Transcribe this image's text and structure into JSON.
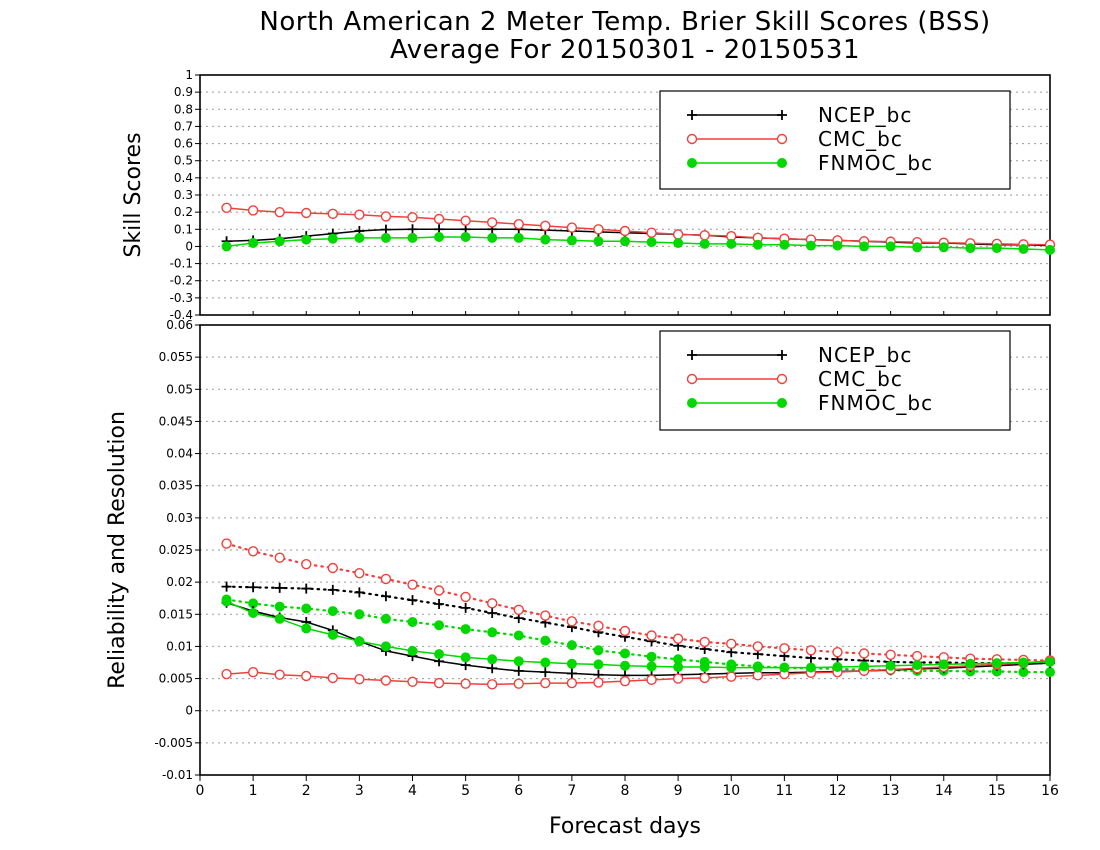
{
  "title_line1": "North American 2 Meter Temp. Brier Skill Scores (BSS)",
  "title_line2": "Average For 20150301 - 20150531",
  "colors": {
    "NCEP_bc": "#000000",
    "CMC_bc": "#f0403c",
    "FNMOC_bc": "#00d800"
  },
  "chart_data": [
    {
      "type": "line",
      "ylabel": "Skill Scores",
      "xlabel": "",
      "xlim": [
        0,
        16
      ],
      "ylim": [
        -0.4,
        1
      ],
      "grid": true,
      "legend_position": "top-right",
      "xticks": [],
      "yticks": [
        "-0.4",
        "-0.3",
        "-0.2",
        "-0.1",
        "0",
        "0.1",
        "0.2",
        "0.3",
        "0.4",
        "0.5",
        "0.6",
        "0.7",
        "0.8",
        "0.9",
        "1"
      ],
      "x": [
        0.5,
        1,
        1.5,
        2,
        2.5,
        3,
        3.5,
        4,
        4.5,
        5,
        5.5,
        6,
        6.5,
        7,
        7.5,
        8,
        8.5,
        9,
        9.5,
        10,
        10.5,
        11,
        11.5,
        12,
        12.5,
        13,
        13.5,
        14,
        14.5,
        15,
        15.5,
        16
      ],
      "series": [
        {
          "name": "NCEP_bc",
          "color": "#000000",
          "marker": "plus",
          "style": "solid",
          "values": [
            0.03,
            0.035,
            0.045,
            0.06,
            0.075,
            0.09,
            0.098,
            0.1,
            0.1,
            0.1,
            0.1,
            0.1,
            0.095,
            0.09,
            0.085,
            0.08,
            0.075,
            0.07,
            0.065,
            0.055,
            0.05,
            0.045,
            0.04,
            0.035,
            0.03,
            0.025,
            0.02,
            0.02,
            0.015,
            0.01,
            0.01,
            0.005
          ]
        },
        {
          "name": "CMC_bc",
          "color": "#f0403c",
          "marker": "open-circle",
          "style": "solid",
          "values": [
            0.225,
            0.21,
            0.2,
            0.195,
            0.19,
            0.185,
            0.175,
            0.17,
            0.16,
            0.15,
            0.14,
            0.13,
            0.12,
            0.11,
            0.1,
            0.09,
            0.08,
            0.07,
            0.065,
            0.06,
            0.05,
            0.045,
            0.04,
            0.035,
            0.03,
            0.028,
            0.025,
            0.022,
            0.018,
            0.015,
            0.012,
            0.01
          ]
        },
        {
          "name": "FNMOC_bc",
          "color": "#00d800",
          "marker": "filled-circle",
          "style": "solid",
          "values": [
            0.0,
            0.02,
            0.03,
            0.04,
            0.045,
            0.05,
            0.05,
            0.05,
            0.055,
            0.055,
            0.05,
            0.05,
            0.04,
            0.035,
            0.03,
            0.03,
            0.025,
            0.02,
            0.015,
            0.015,
            0.01,
            0.01,
            0.005,
            0.005,
            0.0,
            0.0,
            -0.005,
            -0.005,
            -0.01,
            -0.01,
            -0.015,
            -0.02
          ]
        }
      ]
    },
    {
      "type": "line",
      "ylabel": "Reliability and Resolution",
      "xlabel": "Forecast days",
      "xlim": [
        0,
        16
      ],
      "ylim": [
        -0.01,
        0.06
      ],
      "grid": true,
      "legend_position": "top-right",
      "xticks": [
        "0",
        "1",
        "2",
        "3",
        "4",
        "5",
        "6",
        "7",
        "8",
        "9",
        "10",
        "11",
        "12",
        "13",
        "14",
        "15",
        "16"
      ],
      "yticks": [
        "-0.01",
        "-0.005",
        "0",
        "0.005",
        "0.01",
        "0.015",
        "0.02",
        "0.025",
        "0.03",
        "0.035",
        "0.04",
        "0.045",
        "0.05",
        "0.055",
        "0.06"
      ],
      "x": [
        0.5,
        1,
        1.5,
        2,
        2.5,
        3,
        3.5,
        4,
        4.5,
        5,
        5.5,
        6,
        6.5,
        7,
        7.5,
        8,
        8.5,
        9,
        9.5,
        10,
        10.5,
        11,
        11.5,
        12,
        12.5,
        13,
        13.5,
        14,
        14.5,
        15,
        15.5,
        16
      ],
      "series": [
        {
          "name": "NCEP_bc",
          "color": "#000000",
          "marker": "plus",
          "style": "solid",
          "values": [
            0.0168,
            0.0155,
            0.0145,
            0.0138,
            0.0125,
            0.0108,
            0.0093,
            0.0085,
            0.0077,
            0.0071,
            0.0066,
            0.0062,
            0.006,
            0.0058,
            0.0056,
            0.0055,
            0.0055,
            0.0056,
            0.0057,
            0.0058,
            0.0059,
            0.0059,
            0.006,
            0.0061,
            0.0062,
            0.0063,
            0.0065,
            0.0066,
            0.0068,
            0.007,
            0.0072,
            0.0074
          ]
        },
        {
          "name": "CMC_bc",
          "color": "#f0403c",
          "marker": "open-circle",
          "style": "solid",
          "values": [
            0.0057,
            0.006,
            0.0056,
            0.0054,
            0.0051,
            0.0049,
            0.0047,
            0.0045,
            0.0043,
            0.0042,
            0.0041,
            0.0042,
            0.0043,
            0.0043,
            0.0044,
            0.0046,
            0.0048,
            0.005,
            0.0051,
            0.0053,
            0.0055,
            0.0057,
            0.0059,
            0.006,
            0.0062,
            0.0064,
            0.0066,
            0.0068,
            0.007,
            0.0072,
            0.0074,
            0.0078
          ]
        },
        {
          "name": "FNMOC_bc",
          "color": "#00d800",
          "marker": "filled-circle",
          "style": "solid",
          "values": [
            0.017,
            0.0152,
            0.0143,
            0.0128,
            0.0118,
            0.0108,
            0.01,
            0.0093,
            0.0088,
            0.0083,
            0.008,
            0.0077,
            0.0075,
            0.0073,
            0.0072,
            0.007,
            0.0069,
            0.0068,
            0.0068,
            0.0067,
            0.0067,
            0.0067,
            0.0067,
            0.0068,
            0.0069,
            0.007,
            0.0071,
            0.0072,
            0.0073,
            0.0074,
            0.0075,
            0.0076
          ]
        },
        {
          "name": "NCEP_bc",
          "color": "#000000",
          "marker": "plus",
          "style": "dotted",
          "values": [
            0.0193,
            0.0192,
            0.0191,
            0.019,
            0.0188,
            0.0184,
            0.0178,
            0.0172,
            0.0166,
            0.016,
            0.0152,
            0.0144,
            0.0137,
            0.013,
            0.0122,
            0.0115,
            0.0108,
            0.0101,
            0.0096,
            0.0091,
            0.0088,
            0.0085,
            0.0082,
            0.008,
            0.0078,
            0.0076,
            0.0075,
            0.0075,
            0.0074,
            0.0074,
            0.0074,
            0.0074
          ]
        },
        {
          "name": "CMC_bc",
          "color": "#f0403c",
          "marker": "open-circle",
          "style": "dotted",
          "values": [
            0.026,
            0.0248,
            0.0238,
            0.0228,
            0.0222,
            0.0214,
            0.0205,
            0.0196,
            0.0187,
            0.0177,
            0.0167,
            0.0157,
            0.0148,
            0.0139,
            0.0132,
            0.0124,
            0.0117,
            0.0112,
            0.0107,
            0.0104,
            0.01,
            0.0097,
            0.0094,
            0.0091,
            0.0089,
            0.0087,
            0.0085,
            0.0083,
            0.0081,
            0.008,
            0.0079,
            0.0078
          ]
        },
        {
          "name": "FNMOC_bc",
          "color": "#00d800",
          "marker": "filled-circle",
          "style": "dotted",
          "values": [
            0.0173,
            0.0167,
            0.0162,
            0.0159,
            0.0155,
            0.015,
            0.0143,
            0.0138,
            0.0133,
            0.0127,
            0.0122,
            0.0117,
            0.0109,
            0.0102,
            0.0094,
            0.0089,
            0.0084,
            0.008,
            0.0076,
            0.0072,
            0.0069,
            0.0067,
            0.0066,
            0.0065,
            0.0064,
            0.0063,
            0.0062,
            0.0062,
            0.0061,
            0.0061,
            0.006,
            0.006
          ]
        }
      ]
    }
  ]
}
